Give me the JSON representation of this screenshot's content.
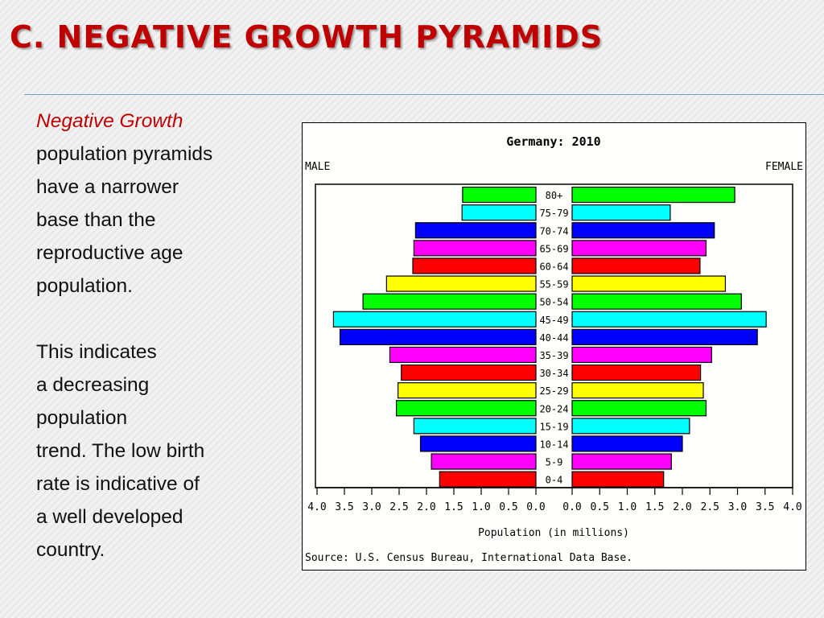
{
  "slide": {
    "title": "C.  NEGATIVE GROWTH PYRAMIDS",
    "paragraph1_lead": "Negative Growth",
    "paragraph1_lines": [
      "population pyramids",
      "have a narrower",
      "base than the",
      "reproductive age",
      "population."
    ],
    "paragraph2_lines": [
      "This indicates",
      "a  decreasing",
      "population",
      "trend.  The low birth",
      "rate is indicative of",
      "a well developed",
      "country."
    ]
  },
  "chart_data": {
    "type": "bar",
    "orientation": "horizontal",
    "subtype": "population-pyramid",
    "title": "Germany: 2010",
    "left_label": "MALE",
    "right_label": "FEMALE",
    "xlabel": "Population (in millions)",
    "source": "Source: U.S. Census Bureau, International Data Base.",
    "xlim": [
      0,
      4
    ],
    "male_ticks": [
      "4.0",
      "3.5",
      "3.0",
      "2.5",
      "2.0",
      "1.5",
      "1.0",
      "0.5",
      "0.0"
    ],
    "female_ticks": [
      "0.0",
      "0.5",
      "1.0",
      "1.5",
      "2.0",
      "2.5",
      "3.0",
      "3.5",
      "4.0"
    ],
    "categories": [
      "80+",
      "75-79",
      "70-74",
      "65-69",
      "60-64",
      "55-59",
      "50-54",
      "45-49",
      "40-44",
      "35-39",
      "30-34",
      "25-29",
      "20-24",
      "15-19",
      "10-14",
      "5-9",
      "0-4"
    ],
    "colors": [
      "#00ff00",
      "#00ffff",
      "#0000ff",
      "#ff00ff",
      "#ff0000",
      "#ffff00",
      "#00ff00",
      "#00ffff",
      "#0000ff",
      "#ff00ff",
      "#ff0000",
      "#ffff00",
      "#00ff00",
      "#00ffff",
      "#0000ff",
      "#ff00ff",
      "#ff0000"
    ],
    "male": [
      1.34,
      1.35,
      2.2,
      2.23,
      2.25,
      2.73,
      3.16,
      3.7,
      3.58,
      2.67,
      2.46,
      2.52,
      2.55,
      2.23,
      2.11,
      1.91,
      1.76
    ],
    "female": [
      2.95,
      1.78,
      2.58,
      2.43,
      2.32,
      2.78,
      3.07,
      3.52,
      3.36,
      2.53,
      2.33,
      2.38,
      2.43,
      2.13,
      2.0,
      1.8,
      1.66
    ],
    "grid": false
  }
}
